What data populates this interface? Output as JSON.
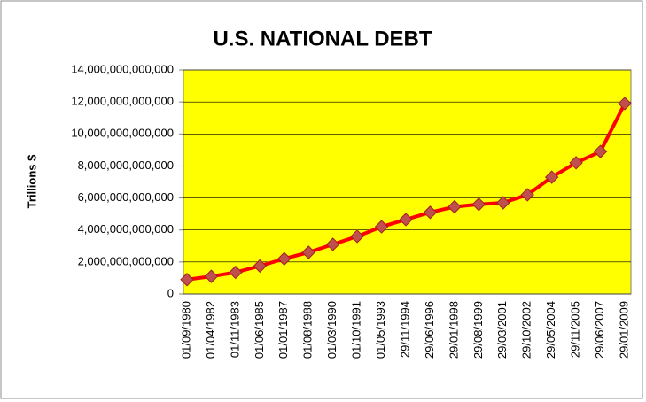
{
  "chart_data": {
    "type": "line",
    "title": "U.S. NATIONAL DEBT",
    "y_label": "Trillions $",
    "categories": [
      "01/09/1980",
      "01/04/1982",
      "01/11/1983",
      "01/06/1985",
      "01/01/1987",
      "01/08/1988",
      "01/03/1990",
      "01/10/1991",
      "01/05/1993",
      "29/11/1994",
      "29/06/1996",
      "29/01/1998",
      "29/08/1999",
      "29/03/2001",
      "29/10/2002",
      "29/05/2004",
      "29/11/2005",
      "29/06/2007",
      "29/01/2009"
    ],
    "series": [
      {
        "color": "#ff0000",
        "marker_color": "#c0504d",
        "values": [
          900000000000,
          1100000000000,
          1350000000000,
          1750000000000,
          2200000000000,
          2600000000000,
          3100000000000,
          3600000000000,
          4200000000000,
          4650000000000,
          5100000000000,
          5450000000000,
          5600000000000,
          5700000000000,
          6200000000000,
          7300000000000,
          8200000000000,
          8900000000000,
          11900000000000
        ]
      }
    ],
    "ylim": [
      0,
      14000000000000
    ],
    "yticks": [
      0,
      {
        "value": 2000000000000,
        "label": "2,000,000,000,000"
      },
      {
        "value": 4000000000000,
        "label": "4,000,000,000,000"
      },
      {
        "value": 6000000000000,
        "label": "6,000,000,000,000"
      },
      {
        "value": 8000000000000,
        "label": "8,000,000,000,000"
      },
      {
        "value": 10000000000000,
        "label": "10,000,000,000,000"
      },
      {
        "value": 12000000000000,
        "label": "12,000,000,000,000"
      },
      {
        "value": 14000000000000,
        "label": "14,000,000,000,000"
      }
    ],
    "grid": true,
    "plot_background": "#ffff00"
  }
}
